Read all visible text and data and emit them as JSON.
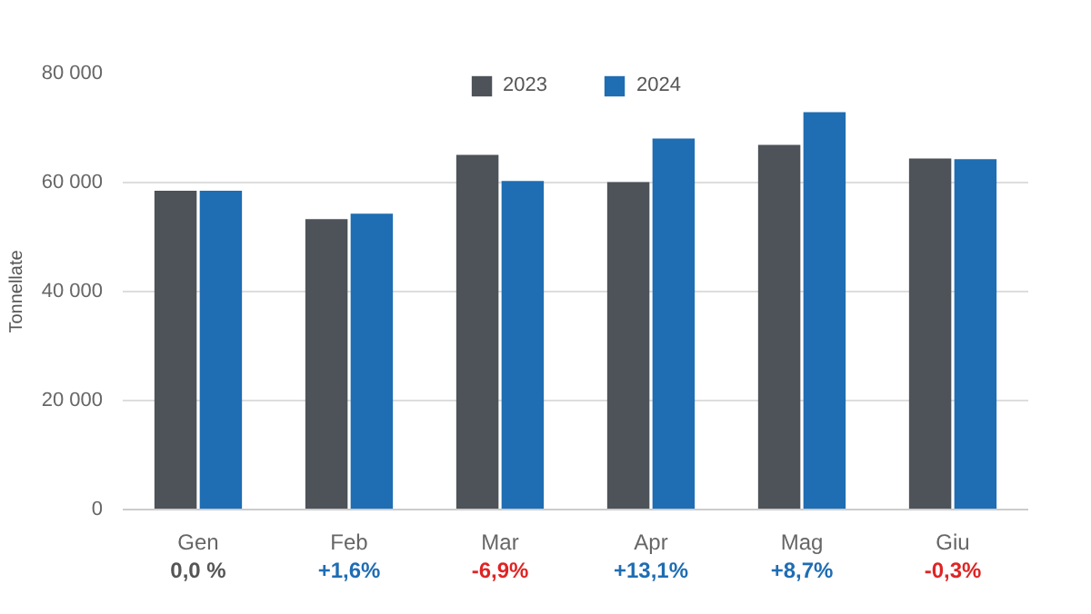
{
  "chart_data": {
    "type": "bar",
    "ylabel": "Tonnellate",
    "categories": [
      "Gen",
      "Feb",
      "Mar",
      "Apr",
      "Mag",
      "Giu"
    ],
    "series": [
      {
        "name": "2023",
        "color": "#4d5358",
        "values": [
          58500,
          53300,
          65100,
          60100,
          66900,
          64400
        ]
      },
      {
        "name": "2024",
        "color": "#1f6db3",
        "values": [
          58500,
          54300,
          60300,
          68100,
          72900,
          64300
        ]
      }
    ],
    "ylim": [
      0,
      80000
    ],
    "yticks": [
      0,
      {
        "value": 20000,
        "label": "20 000"
      },
      {
        "value": 40000,
        "label": "40 000"
      },
      {
        "value": 60000,
        "label": "60 000"
      },
      {
        "value": 80000,
        "label": "80 000"
      }
    ],
    "grid": "y",
    "legend": "top",
    "annotations": [
      "0,0 %",
      "+1,6%",
      "-6,9%",
      "+13,1%",
      "+8,7%",
      "-0,3%"
    ]
  }
}
